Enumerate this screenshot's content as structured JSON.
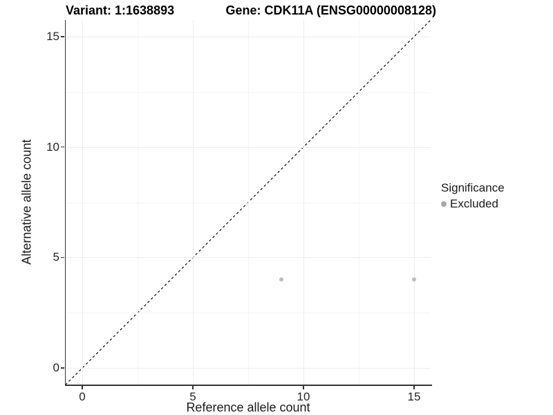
{
  "titles": {
    "left": "Variant: 1:1638893",
    "right": "Gene: CDK11A (ENSG00000008128)"
  },
  "chart_data": {
    "type": "scatter",
    "xlabel": "Reference allele count",
    "ylabel": "Alternative allele count",
    "xlim": [
      -0.75,
      15.75
    ],
    "ylim": [
      -0.75,
      15.75
    ],
    "x_ticks": [
      0,
      5,
      10,
      15
    ],
    "y_ticks": [
      0,
      5,
      10,
      15
    ],
    "x_minor_ticks": [
      2.5,
      7.5,
      12.5
    ],
    "y_minor_ticks": [
      2.5,
      7.5,
      12.5
    ],
    "grid": true,
    "series": [
      {
        "name": "Excluded",
        "color": "#bdbdbd",
        "points": [
          {
            "x": 9,
            "y": 4
          },
          {
            "x": 15,
            "y": 4
          }
        ]
      }
    ],
    "reference_line": {
      "type": "identity",
      "style": "dashed",
      "color": "#1a1a1a"
    },
    "legend": {
      "position": "right",
      "title": "Significance",
      "entries": [
        {
          "label": "Excluded",
          "color": "#a8a8a8"
        }
      ]
    }
  }
}
